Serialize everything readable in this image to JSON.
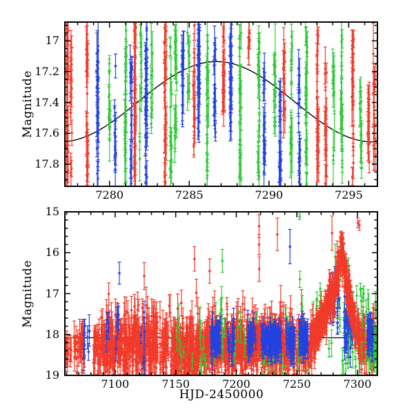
{
  "figure": {
    "background": "#ffffff",
    "frame_color": "#000000",
    "colors": {
      "red": "#f23a2a",
      "green": "#2fc937",
      "blue": "#2342e0",
      "model": "#000000"
    }
  },
  "chart_data": [
    {
      "type": "scatter",
      "panel": "top",
      "title": "",
      "xlabel": "",
      "ylabel": "Magnitude",
      "y_axis_inverted": true,
      "xlim": [
        7277.2,
        7296.8
      ],
      "ylim_mag": [
        16.879,
        17.943
      ],
      "x_major_ticks": [
        7280,
        7285,
        7290,
        7295
      ],
      "x_tick_labels": [
        "7280",
        "7285",
        "7290",
        "7295"
      ],
      "x_minor_step": 1,
      "y_major_ticks": [
        17,
        17.2,
        17.4,
        17.6,
        17.8
      ],
      "y_tick_labels": [
        "17",
        "17.2",
        "17.4",
        "17.6",
        "17.8"
      ],
      "y_minor_step": 0.05,
      "model_curve": {
        "shape": "cosine",
        "peak_hjd": 7286.7,
        "peak_mag": 17.135,
        "amplitude": 0.52,
        "period_days": 19.6
      },
      "strips": [
        [
          7277.35,
          "red",
          16.88,
          17.94,
          28
        ],
        [
          7277.6,
          "red",
          17.0,
          17.94,
          16
        ],
        [
          7278.6,
          "red",
          16.95,
          17.94,
          24
        ],
        [
          7279.25,
          "blue",
          17.05,
          17.92,
          24
        ],
        [
          7280.0,
          "green",
          17.05,
          17.7,
          10
        ],
        [
          7280.35,
          "blue",
          17.15,
          17.9,
          10
        ],
        [
          7281.0,
          "green",
          16.88,
          17.94,
          22
        ],
        [
          7281.35,
          "blue",
          17.1,
          17.94,
          16
        ],
        [
          7281.6,
          "red",
          16.88,
          17.94,
          26
        ],
        [
          7281.95,
          "green",
          16.88,
          17.8,
          14
        ],
        [
          7282.3,
          "blue",
          16.88,
          17.94,
          32
        ],
        [
          7282.65,
          "green",
          16.92,
          17.55,
          9
        ],
        [
          7283.5,
          "red",
          16.88,
          17.94,
          28
        ],
        [
          7283.85,
          "green",
          16.95,
          17.85,
          12
        ],
        [
          7284.15,
          "green",
          16.9,
          17.9,
          16
        ],
        [
          7284.6,
          "blue",
          17.0,
          17.55,
          10
        ],
        [
          7284.95,
          "green",
          16.88,
          17.35,
          8
        ],
        [
          7285.3,
          "red",
          16.9,
          17.7,
          14
        ],
        [
          7285.6,
          "blue",
          16.88,
          17.6,
          28
        ],
        [
          7286.15,
          "green",
          16.9,
          17.9,
          20
        ],
        [
          7286.6,
          "blue",
          16.95,
          17.6,
          14
        ],
        [
          7287.15,
          "red",
          16.88,
          17.4,
          18
        ],
        [
          7287.6,
          "blue",
          16.88,
          17.55,
          26
        ],
        [
          7288.2,
          "green",
          16.9,
          17.9,
          22
        ],
        [
          7288.75,
          "red",
          16.88,
          17.05,
          6
        ],
        [
          7289.35,
          "green",
          16.95,
          17.94,
          20
        ],
        [
          7289.7,
          "blue",
          17.2,
          17.95,
          16
        ],
        [
          7290.35,
          "green",
          17.0,
          17.6,
          12
        ],
        [
          7290.7,
          "blue",
          17.3,
          17.95,
          18
        ],
        [
          7290.95,
          "red",
          17.05,
          17.6,
          12
        ],
        [
          7291.4,
          "green",
          16.9,
          17.8,
          16
        ],
        [
          7291.9,
          "blue",
          17.1,
          17.92,
          14
        ],
        [
          7292.35,
          "green",
          16.88,
          17.94,
          20
        ],
        [
          7293.05,
          "red",
          16.92,
          17.88,
          22
        ],
        [
          7293.55,
          "red",
          17.1,
          17.94,
          16
        ],
        [
          7294.05,
          "green",
          17.15,
          17.78,
          10
        ],
        [
          7294.55,
          "green",
          16.88,
          17.92,
          18
        ],
        [
          7295.25,
          "red",
          16.95,
          17.92,
          24
        ],
        [
          7295.75,
          "green",
          17.3,
          17.92,
          12
        ],
        [
          7296.25,
          "red",
          17.35,
          17.94,
          14
        ],
        [
          7296.6,
          "red",
          17.0,
          17.94,
          12
        ]
      ]
    },
    {
      "type": "scatter",
      "panel": "bottom",
      "title": "",
      "xlabel": "HJD-2450000",
      "ylabel": "Magnitude",
      "y_axis_inverted": true,
      "xlim": [
        7058.5,
        7316.5
      ],
      "ylim_mag": [
        15,
        19
      ],
      "x_major_ticks": [
        7100,
        7150,
        7200,
        7250,
        7300
      ],
      "x_tick_labels": [
        "7100",
        "7150",
        "7200",
        "7250",
        "7300"
      ],
      "x_minor_step": 10,
      "y_major_ticks": [
        15,
        16,
        17,
        18,
        19
      ],
      "y_tick_labels": [
        "15",
        "16",
        "17",
        "18",
        "19"
      ],
      "y_minor_step": 0.2,
      "baseline_fit_mag": 18.08,
      "clusters": [
        {
          "color": "red",
          "x0": 7059,
          "x1": 7064,
          "n": 14,
          "mean": 18.35,
          "sd": 0.25
        },
        {
          "color": "red",
          "x0": 7066,
          "x1": 7075,
          "n": 35,
          "mean": 18.25,
          "sd": 0.3
        },
        {
          "color": "red",
          "x0": 7082,
          "x1": 7135,
          "n": 380,
          "mean": 18.3,
          "sd": 0.33
        },
        {
          "color": "red",
          "x0": 7137,
          "x1": 7144,
          "n": 45,
          "mean": 18.35,
          "sd": 0.35
        },
        {
          "color": "red",
          "x0": 7146,
          "x1": 7168,
          "n": 200,
          "mean": 18.45,
          "sd": 0.35
        },
        {
          "color": "red",
          "x0": 7168,
          "x1": 7242,
          "n": 620,
          "mean": 18.25,
          "sd": 0.32
        },
        {
          "color": "red",
          "x0": 7242,
          "x1": 7263,
          "n": 120,
          "mean": 18.25,
          "sd": 0.28
        },
        {
          "color": "red",
          "x0": 7302,
          "x1": 7316,
          "n": 110,
          "mean": 18.15,
          "sd": 0.28
        },
        {
          "color": "red",
          "x0": 7086,
          "x1": 7262,
          "n": 40,
          "mean": 17.55,
          "sd": 0.18,
          "e0": 0.25,
          "e1": 0.45
        },
        {
          "color": "green",
          "x0": 7150,
          "x1": 7265,
          "n": 50,
          "mean": 18.25,
          "sd": 0.45
        },
        {
          "color": "green",
          "x0": 7186,
          "x1": 7193,
          "n": 6,
          "mean": 17.7,
          "sd": 0.35
        },
        {
          "color": "green",
          "x0": 7265,
          "x1": 7285,
          "n": 12,
          "mean": 17.5,
          "sd": 0.4
        },
        {
          "color": "green",
          "x0": 7280,
          "x1": 7290,
          "n": 6,
          "mean": 16.6,
          "sd": 0.35
        },
        {
          "color": "green",
          "x0": 7285,
          "x1": 7316,
          "n": 55,
          "mean": 18.0,
          "sd": 0.5
        },
        {
          "color": "green",
          "x0": 7310,
          "x1": 7316,
          "n": 20,
          "mean": 18.45,
          "sd": 0.2
        },
        {
          "color": "blue",
          "x0": 7074,
          "x1": 7079,
          "n": 8,
          "mean": 18.15,
          "sd": 0.22
        },
        {
          "color": "blue",
          "x0": 7092,
          "x1": 7095,
          "n": 5,
          "mean": 17.9,
          "sd": 0.25
        },
        {
          "color": "blue",
          "x0": 7100,
          "x1": 7103,
          "n": 6,
          "mean": 17.75,
          "sd": 0.2
        },
        {
          "color": "blue",
          "x0": 7120,
          "x1": 7126,
          "n": 6,
          "mean": 18.1,
          "sd": 0.4
        },
        {
          "color": "blue",
          "x0": 7179,
          "x1": 7187,
          "n": 45,
          "mean": 18.1,
          "sd": 0.18
        },
        {
          "color": "blue",
          "x0": 7193,
          "x1": 7199,
          "n": 16,
          "mean": 18.2,
          "sd": 0.2
        },
        {
          "color": "blue",
          "x0": 7209,
          "x1": 7216,
          "n": 25,
          "mean": 18.15,
          "sd": 0.18
        },
        {
          "color": "blue",
          "x0": 7221,
          "x1": 7237,
          "n": 90,
          "mean": 18.15,
          "sd": 0.13
        },
        {
          "color": "blue",
          "x0": 7241,
          "x1": 7248,
          "n": 30,
          "mean": 18.2,
          "sd": 0.18
        },
        {
          "color": "blue",
          "x0": 7252,
          "x1": 7259,
          "n": 45,
          "mean": 18.1,
          "sd": 0.13
        },
        {
          "color": "blue",
          "x0": 7278,
          "x1": 7285,
          "n": 15,
          "mean": 17.3,
          "sd": 0.25
        },
        {
          "color": "blue",
          "x0": 7289,
          "x1": 7296,
          "n": 30,
          "mean": 17.9,
          "sd": 0.3
        },
        {
          "color": "blue",
          "x0": 7308,
          "x1": 7313,
          "n": 35,
          "mean": 18.05,
          "sd": 0.16
        }
      ],
      "outburst": {
        "color": "red",
        "n": 380,
        "sd": 0.22,
        "e0": 0.1,
        "e1": 0.3,
        "profile": [
          [
            7263,
            18.2
          ],
          [
            7270,
            17.75
          ],
          [
            7275,
            17.3
          ],
          [
            7278,
            17.05
          ],
          [
            7280,
            17.15
          ],
          [
            7283,
            16.6
          ],
          [
            7286,
            16.1
          ],
          [
            7288,
            16.05
          ],
          [
            7290,
            16.45
          ],
          [
            7292,
            16.95
          ],
          [
            7295,
            17.35
          ],
          [
            7298,
            17.75
          ],
          [
            7302,
            18.05
          ]
        ]
      },
      "outliers": [
        {
          "color": "blue",
          "x": 7103.5,
          "mag": 16.5,
          "err": 0.27
        },
        {
          "color": "red",
          "x": 7124,
          "mag": 16.57,
          "err": 0.33
        },
        {
          "color": "red",
          "x": 7165.5,
          "mag": 16.15,
          "err": 0.3
        },
        {
          "color": "red",
          "x": 7167,
          "mag": 16.98,
          "err": 0.33
        },
        {
          "color": "red",
          "x": 7178,
          "mag": 16.45,
          "err": 0.3
        },
        {
          "color": "green",
          "x": 7188.5,
          "mag": 16.2,
          "err": 0.28
        },
        {
          "color": "red",
          "x": 7218.8,
          "mag": 15.35,
          "err": 0.28
        },
        {
          "color": "red",
          "x": 7218.8,
          "mag": 15.8,
          "err": 0.25
        },
        {
          "color": "red",
          "x": 7218.9,
          "mag": 16.4,
          "err": 0.3
        },
        {
          "color": "red",
          "x": 7233.9,
          "mag": 15.55,
          "err": 0.4
        },
        {
          "color": "blue",
          "x": 7244.3,
          "mag": 15.85,
          "err": 0.42
        },
        {
          "color": "green",
          "x": 7252.3,
          "mag": 15.12,
          "err": 0.07
        },
        {
          "color": "green",
          "x": 7252.5,
          "mag": 16.65,
          "err": 0.2
        },
        {
          "color": "red",
          "x": 7279,
          "mag": 15.52,
          "err": 0.42
        },
        {
          "color": "red",
          "x": 7300.3,
          "mag": 15.27,
          "err": 0.12
        },
        {
          "color": "red",
          "x": 7301.6,
          "mag": 15.33,
          "err": 0.12
        }
      ]
    }
  ]
}
